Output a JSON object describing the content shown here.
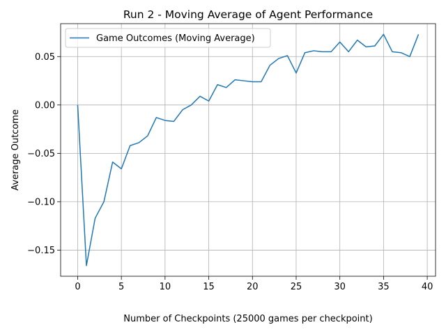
{
  "chart_data": {
    "type": "line",
    "title": "Run 2 - Moving Average of Agent Performance",
    "xlabel": "Number of Checkpoints (25000 games per checkpoint)",
    "ylabel": "Average Outcome",
    "xlim": [
      -1.95,
      40.95
    ],
    "ylim": [
      -0.177,
      0.084
    ],
    "xticks": [
      0,
      5,
      10,
      15,
      20,
      25,
      30,
      35,
      40
    ],
    "yticks": [
      -0.15,
      -0.1,
      -0.05,
      0.0,
      0.05
    ],
    "ytick_labels": [
      "−0.15",
      "−0.10",
      "−0.05",
      "0.00",
      "0.05"
    ],
    "grid": true,
    "legend_position": "upper-left",
    "series_color": "#1f77b4",
    "series": [
      {
        "name": "Game Outcomes (Moving Average)",
        "x": [
          0,
          1,
          2,
          3,
          4,
          5,
          6,
          7,
          8,
          9,
          10,
          11,
          12,
          13,
          14,
          15,
          16,
          17,
          18,
          19,
          20,
          21,
          22,
          23,
          24,
          25,
          26,
          27,
          28,
          29,
          30,
          31,
          32,
          33,
          34,
          35,
          36,
          37,
          38,
          39
        ],
        "values": [
          0.0,
          -0.166,
          -0.117,
          -0.1,
          -0.059,
          -0.066,
          -0.042,
          -0.039,
          -0.032,
          -0.013,
          -0.016,
          -0.017,
          -0.005,
          0.0,
          0.009,
          0.004,
          0.021,
          0.018,
          0.026,
          0.025,
          0.024,
          0.024,
          0.041,
          0.048,
          0.051,
          0.033,
          0.054,
          0.056,
          0.055,
          0.055,
          0.065,
          0.055,
          0.067,
          0.06,
          0.061,
          0.073,
          0.055,
          0.054,
          0.05,
          0.073
        ]
      }
    ]
  }
}
